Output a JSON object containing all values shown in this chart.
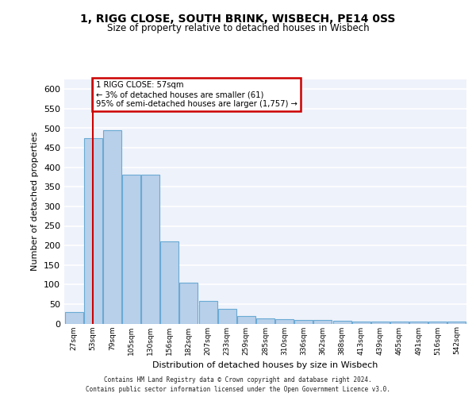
{
  "title": "1, RIGG CLOSE, SOUTH BRINK, WISBECH, PE14 0SS",
  "subtitle": "Size of property relative to detached houses in Wisbech",
  "xlabel": "Distribution of detached houses by size in Wisbech",
  "ylabel": "Number of detached properties",
  "bar_color": "#b8d0ea",
  "bar_edge_color": "#6aaad4",
  "categories": [
    "27sqm",
    "53sqm",
    "79sqm",
    "105sqm",
    "130sqm",
    "156sqm",
    "182sqm",
    "207sqm",
    "233sqm",
    "259sqm",
    "285sqm",
    "310sqm",
    "336sqm",
    "362sqm",
    "388sqm",
    "413sqm",
    "439sqm",
    "465sqm",
    "491sqm",
    "516sqm",
    "542sqm"
  ],
  "values": [
    30,
    475,
    495,
    382,
    382,
    210,
    105,
    57,
    38,
    20,
    13,
    12,
    10,
    10,
    7,
    5,
    5,
    5,
    5,
    5,
    5
  ],
  "ylim": [
    0,
    625
  ],
  "yticks": [
    0,
    50,
    100,
    150,
    200,
    250,
    300,
    350,
    400,
    450,
    500,
    550,
    600
  ],
  "property_line_x": 1,
  "annotation_text": "1 RIGG CLOSE: 57sqm\n← 3% of detached houses are smaller (61)\n95% of semi-detached houses are larger (1,757) →",
  "annotation_box_facecolor": "#ffffff",
  "annotation_box_edgecolor": "#cc0000",
  "footer_line1": "Contains HM Land Registry data © Crown copyright and database right 2024.",
  "footer_line2": "Contains public sector information licensed under the Open Government Licence v3.0.",
  "bg_color": "#eef2fb",
  "grid_color": "#ffffff",
  "vline_color": "#cc0000",
  "fig_width": 6.0,
  "fig_height": 5.0,
  "dpi": 100
}
